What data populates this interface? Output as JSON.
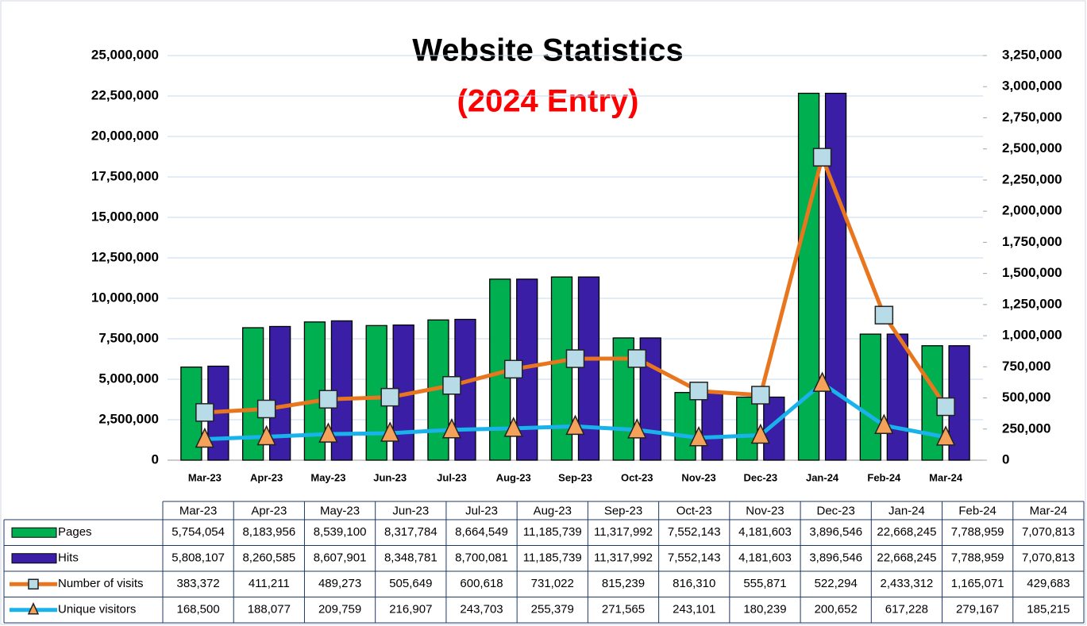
{
  "chart_data": {
    "type": "bar",
    "title": "Website Statistics",
    "subtitle": "(2024 Entry)",
    "categories": [
      "Mar-23",
      "Apr-23",
      "May-23",
      "Jun-23",
      "Jul-23",
      "Aug-23",
      "Sep-23",
      "Oct-23",
      "Nov-23",
      "Dec-23",
      "Jan-24",
      "Feb-24",
      "Mar-24"
    ],
    "series": [
      {
        "name": "Pages",
        "type": "bar",
        "color": "#00b050",
        "values": [
          5754054,
          8183956,
          8539100,
          8317784,
          8664549,
          11185739,
          11317992,
          7552143,
          4181603,
          3896546,
          22668245,
          7788959,
          7070813
        ],
        "value_labels": [
          "5,754,054",
          "8,183,956",
          "8,539,100",
          "8,317,784",
          "8,664,549",
          "11,185,739",
          "11,317,992",
          "7,552,143",
          "4,181,603",
          "3,896,546",
          "22,668,245",
          "7,788,959",
          "7,070,813"
        ]
      },
      {
        "name": "Hits",
        "type": "bar",
        "color": "#3a1fa6",
        "values": [
          5808107,
          8260585,
          8607901,
          8348781,
          8700081,
          11185739,
          11317992,
          7552143,
          4181603,
          3896546,
          22668245,
          7788959,
          7070813
        ],
        "value_labels": [
          "5,808,107",
          "8,260,585",
          "8,607,901",
          "8,348,781",
          "8,700,081",
          "11,185,739",
          "11,317,992",
          "7,552,143",
          "4,181,603",
          "3,896,546",
          "22,668,245",
          "7,788,959",
          "7,070,813"
        ]
      },
      {
        "name": "Number of visits",
        "type": "line",
        "axis": "y2",
        "color": "#e8761e",
        "marker": "square",
        "marker_color": "#b8dbe8",
        "values": [
          383372,
          411211,
          489273,
          505649,
          600618,
          731022,
          815239,
          816310,
          555871,
          522294,
          2433312,
          1165071,
          429683
        ],
        "value_labels": [
          "383,372",
          "411,211",
          "489,273",
          "505,649",
          "600,618",
          "731,022",
          "815,239",
          "816,310",
          "555,871",
          "522,294",
          "2,433,312",
          "1,165,071",
          "429,683"
        ]
      },
      {
        "name": "Unique visitors",
        "type": "line",
        "axis": "y2",
        "color": "#19b2ea",
        "marker": "triangle",
        "marker_color": "#f4a15a",
        "values": [
          168500,
          188077,
          209759,
          216907,
          243703,
          255379,
          271565,
          243101,
          180239,
          200652,
          617228,
          279167,
          185215
        ],
        "value_labels": [
          "168,500",
          "188,077",
          "209,759",
          "216,907",
          "243,703",
          "255,379",
          "271,565",
          "243,101",
          "180,239",
          "200,652",
          "617,228",
          "279,167",
          "185,215"
        ]
      }
    ],
    "ylim": [
      0,
      25000000
    ],
    "yticks": [
      0,
      {
        "value": 2500000,
        "label": "2,500,000"
      },
      {
        "value": 5000000,
        "label": "5,000,000"
      },
      {
        "value": 7500000,
        "label": "7,500,000"
      },
      {
        "value": 10000000,
        "label": "10,000,000"
      },
      {
        "value": 12500000,
        "label": "12,500,000"
      },
      {
        "value": 15000000,
        "label": "15,000,000"
      },
      {
        "value": 17500000,
        "label": "17,500,000"
      },
      {
        "value": 20000000,
        "label": "20,000,000"
      },
      {
        "value": 22500000,
        "label": "22,500,000"
      },
      {
        "value": 25000000,
        "label": "25,000,000"
      }
    ],
    "y2lim": [
      0,
      3250000
    ],
    "y2ticks": [
      0,
      {
        "value": 250000,
        "label": "250,000"
      },
      {
        "value": 500000,
        "label": "500,000"
      },
      {
        "value": 750000,
        "label": "750,000"
      },
      {
        "value": 1000000,
        "label": "1,000,000"
      },
      {
        "value": 1250000,
        "label": "1,250,000"
      },
      {
        "value": 1500000,
        "label": "1,500,000"
      },
      {
        "value": 1750000,
        "label": "1,750,000"
      },
      {
        "value": 2000000,
        "label": "2,000,000"
      },
      {
        "value": 2250000,
        "label": "2,250,000"
      },
      {
        "value": 2500000,
        "label": "2,500,000"
      },
      {
        "value": 2750000,
        "label": "2,750,000"
      },
      {
        "value": 3000000,
        "label": "3,000,000"
      },
      {
        "value": 3250000,
        "label": "3,250,000"
      }
    ],
    "grid": true,
    "data_table": true
  }
}
